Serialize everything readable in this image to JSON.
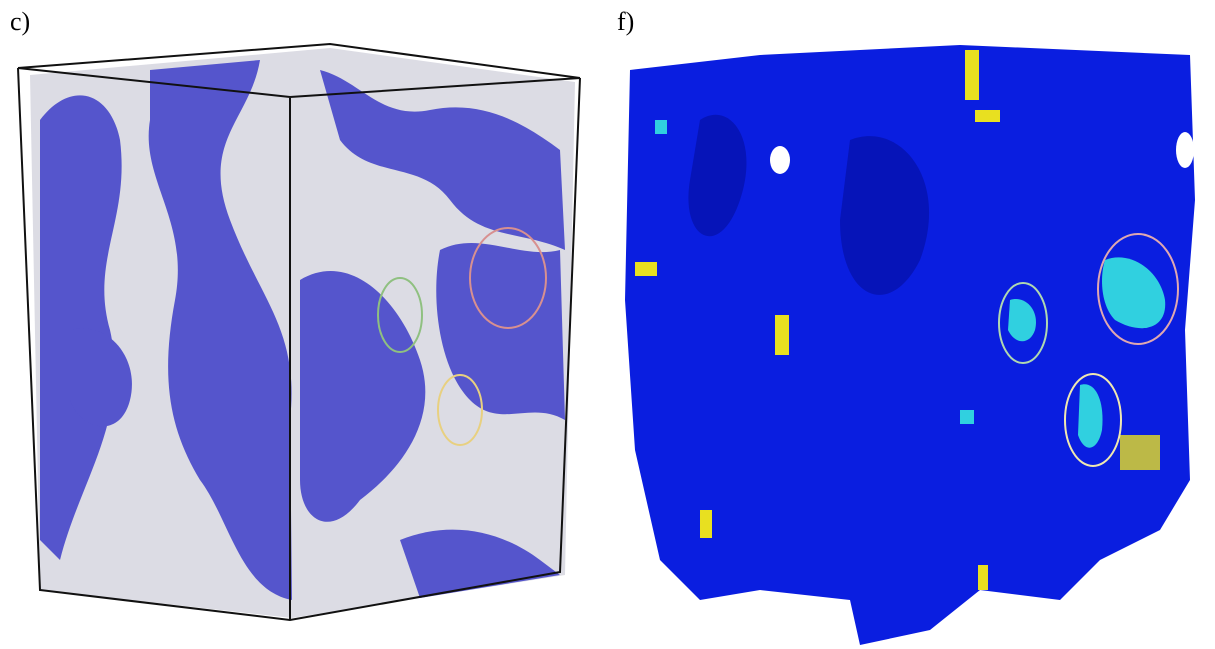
{
  "panels": [
    {
      "label": "c)"
    },
    {
      "label": "f)"
    }
  ]
}
